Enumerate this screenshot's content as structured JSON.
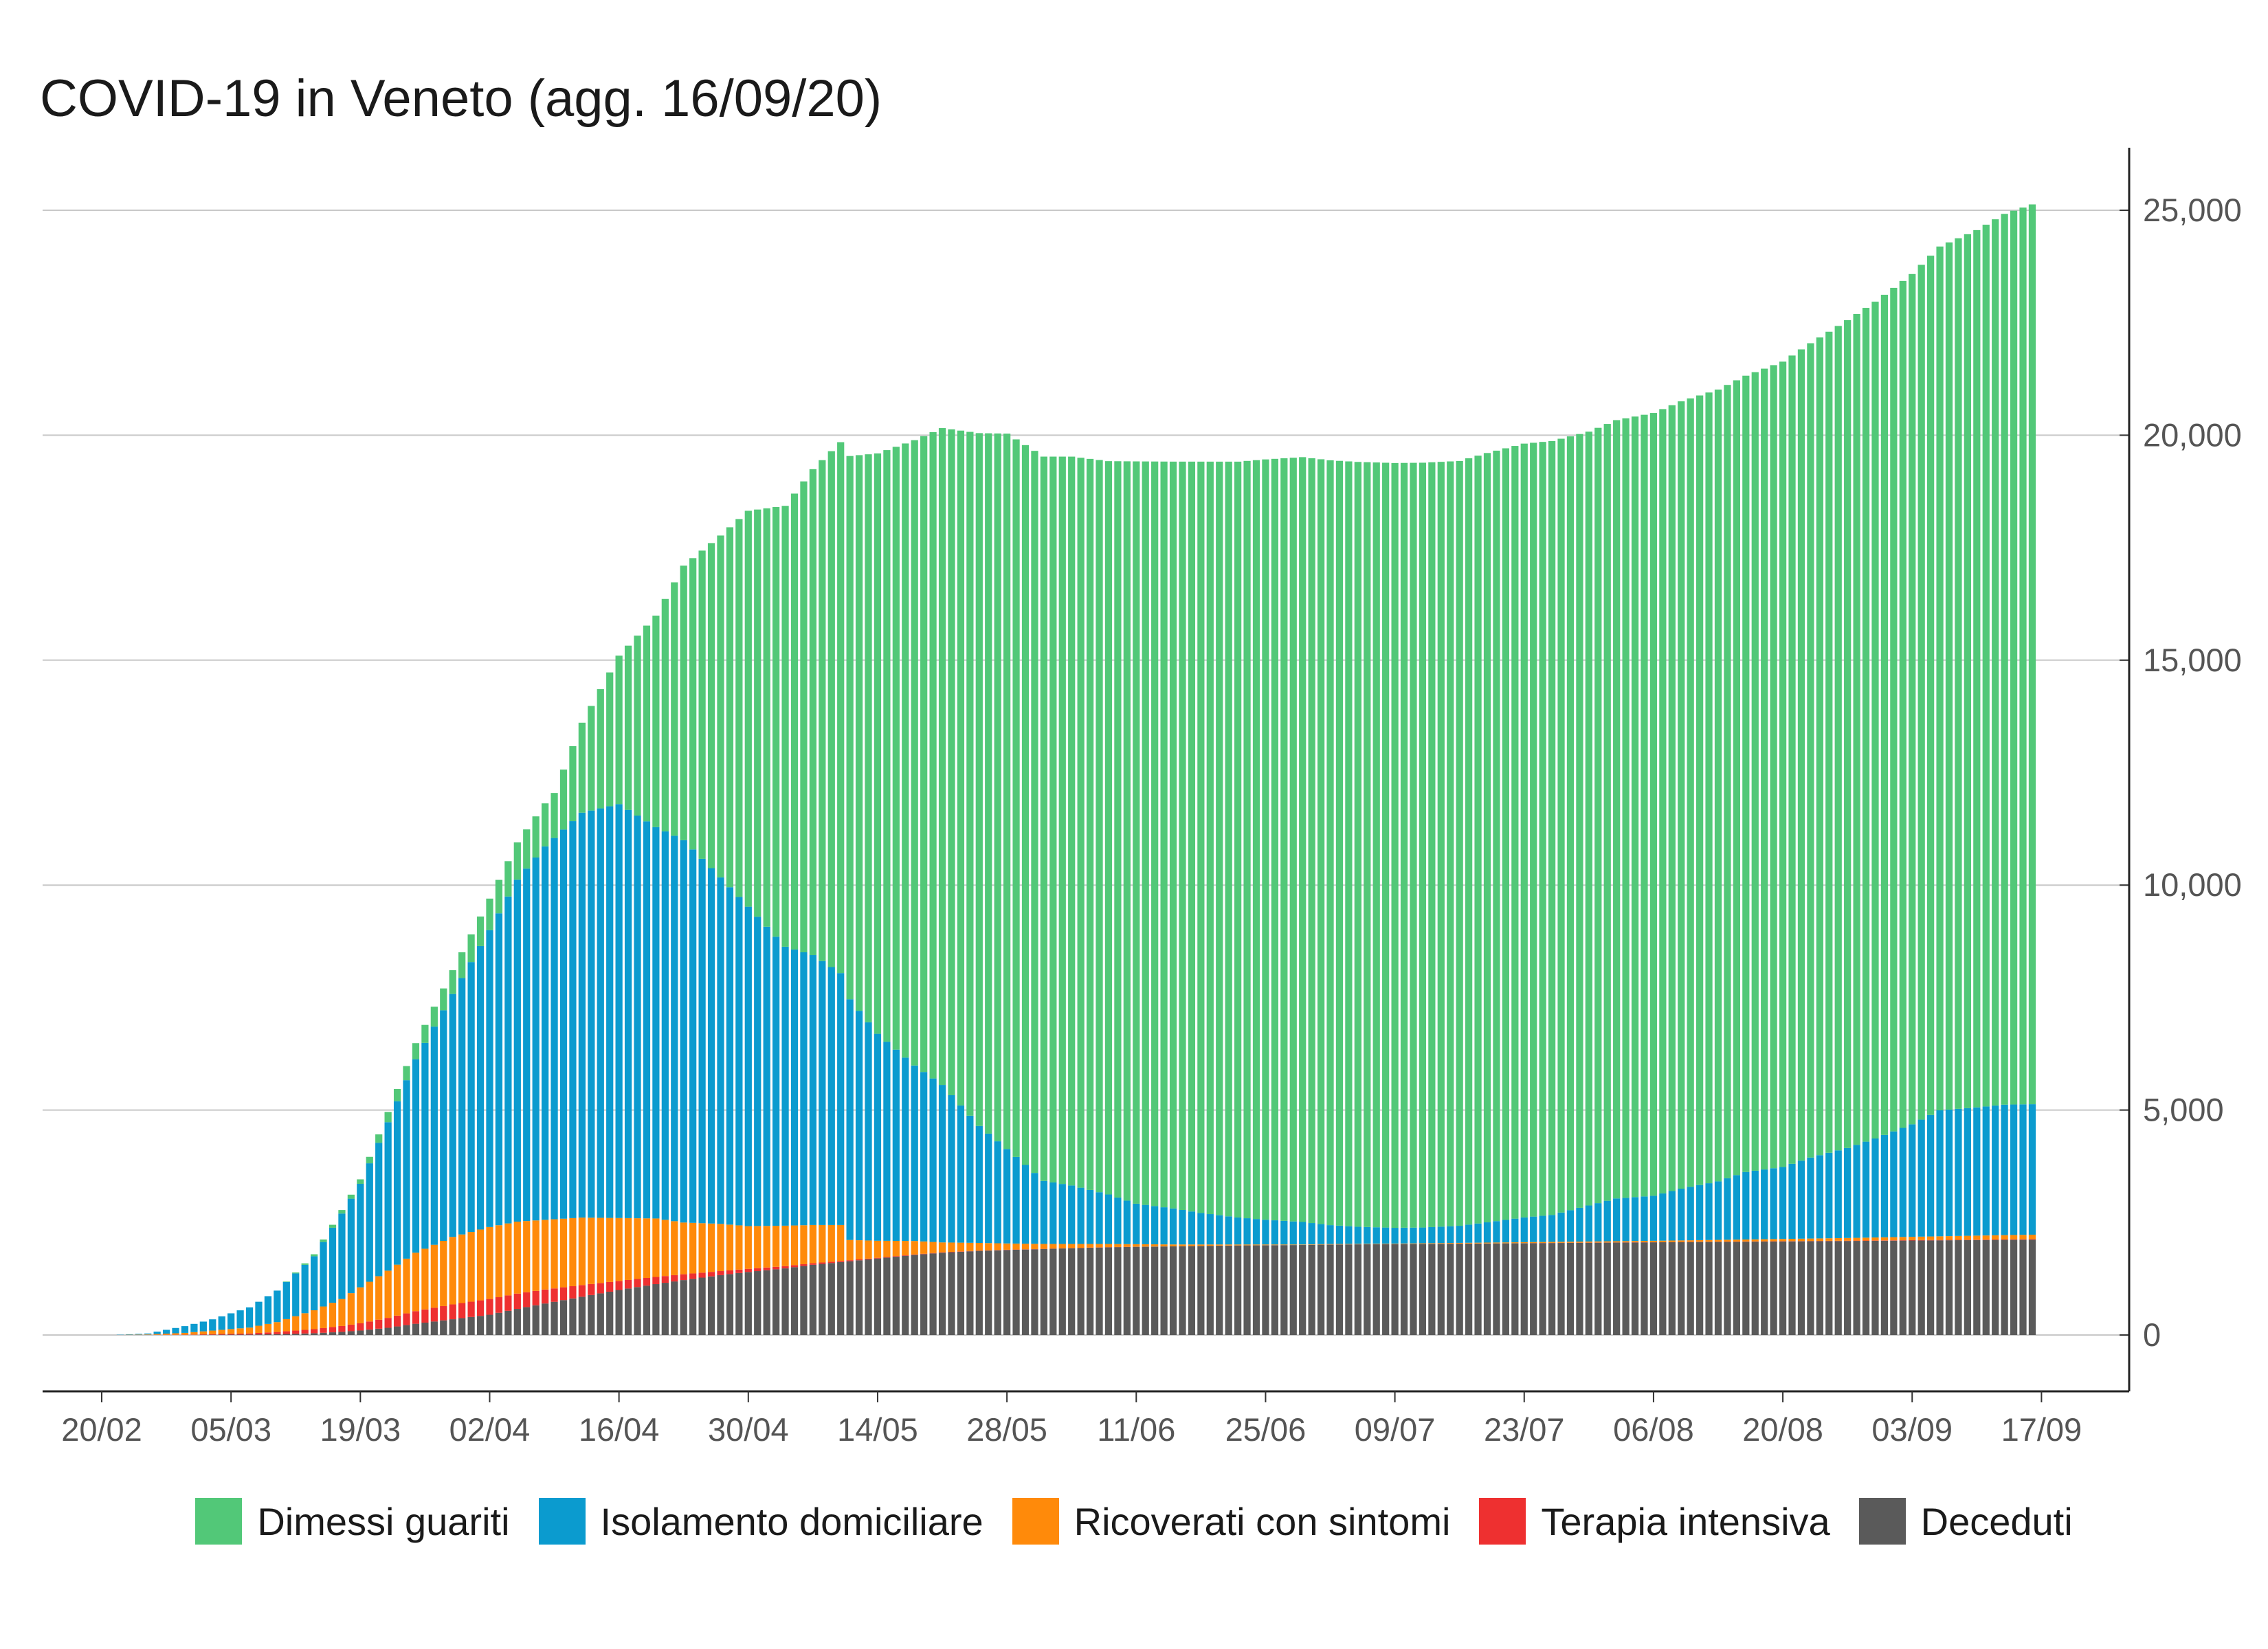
{
  "chart_data": {
    "type": "bar",
    "stacked": true,
    "title": "COVID-19 in Veneto (agg. 16/09/20)",
    "xlabel": "",
    "ylabel": "",
    "ylim": [
      0,
      26000
    ],
    "y_ticks": [
      0,
      5000,
      10000,
      15000,
      20000,
      25000
    ],
    "y_tick_labels": [
      "0",
      "5,000",
      "10,000",
      "15,000",
      "20,000",
      "25,000"
    ],
    "y_axis_side": "right",
    "grid": "horizontal",
    "legend_position": "bottom",
    "x_start": "21/02",
    "x_end": "16/09",
    "x_ticks": [
      "20/02",
      "05/03",
      "19/03",
      "02/04",
      "16/04",
      "30/04",
      "14/05",
      "28/05",
      "11/06",
      "25/06",
      "09/07",
      "23/07",
      "06/08",
      "20/08",
      "03/09",
      "17/09"
    ],
    "series_order_bottom_to_top": [
      "Deceduti",
      "Terapia intensiva",
      "Ricoverati con sintomi",
      "Isolamento domiciliare",
      "Dimessi guariti"
    ],
    "series": [
      {
        "name": "Dimessi guariti",
        "color": "#52c878",
        "keyframes": [
          [
            "21/02",
            0
          ],
          [
            "10/03",
            0
          ],
          [
            "19/03",
            100
          ],
          [
            "26/03",
            400
          ],
          [
            "02/04",
            700
          ],
          [
            "09/04",
            1000
          ],
          [
            "12/04",
            2000
          ],
          [
            "16/04",
            3300
          ],
          [
            "20/04",
            4700
          ],
          [
            "23/04",
            6100
          ],
          [
            "27/04",
            7600
          ],
          [
            "30/04",
            8800
          ],
          [
            "04/05",
            9800
          ],
          [
            "07/05",
            10800
          ],
          [
            "10/05",
            11800
          ],
          [
            "14/05",
            12900
          ],
          [
            "18/05",
            13900
          ],
          [
            "21/05",
            14600
          ],
          [
            "25/05",
            15400
          ],
          [
            "28/05",
            15900
          ],
          [
            "01/06",
            16100
          ],
          [
            "04/06",
            16200
          ],
          [
            "08/06",
            16300
          ],
          [
            "11/06",
            16500
          ],
          [
            "15/06",
            16600
          ],
          [
            "18/06",
            16700
          ],
          [
            "22/06",
            16800
          ],
          [
            "25/06",
            16900
          ],
          [
            "29/06",
            17000
          ],
          [
            "02/07",
            17000
          ],
          [
            "05/07",
            17000
          ],
          [
            "09/07",
            17000
          ],
          [
            "12/07",
            17000
          ],
          [
            "16/07",
            17000
          ],
          [
            "19/07",
            17100
          ],
          [
            "23/07",
            17200
          ],
          [
            "26/07",
            17200
          ],
          [
            "30/07",
            17200
          ],
          [
            "02/08",
            17300
          ],
          [
            "06/08",
            17400
          ],
          [
            "09/08",
            17500
          ],
          [
            "13/08",
            17600
          ],
          [
            "16/08",
            17700
          ],
          [
            "20/08",
            17900
          ],
          [
            "23/08",
            18100
          ],
          [
            "27/08",
            18400
          ],
          [
            "30/08",
            18600
          ],
          [
            "03/09",
            18900
          ],
          [
            "06/09",
            19200
          ],
          [
            "10/09",
            19500
          ],
          [
            "13/09",
            19800
          ],
          [
            "16/09",
            20000
          ]
        ]
      },
      {
        "name": "Isolamento domiciliare",
        "color": "#0b9bcf",
        "keyframes": [
          [
            "21/02",
            0
          ],
          [
            "25/02",
            20
          ],
          [
            "29/02",
            150
          ],
          [
            "03/03",
            250
          ],
          [
            "07/03",
            450
          ],
          [
            "10/03",
            700
          ],
          [
            "14/03",
            1200
          ],
          [
            "17/03",
            1900
          ],
          [
            "19/03",
            2300
          ],
          [
            "22/03",
            3300
          ],
          [
            "25/03",
            4300
          ],
          [
            "29/03",
            5400
          ],
          [
            "02/04",
            6600
          ],
          [
            "05/04",
            7600
          ],
          [
            "08/04",
            8300
          ],
          [
            "12/04",
            9000
          ],
          [
            "16/04",
            9200
          ],
          [
            "20/04",
            8700
          ],
          [
            "23/04",
            8500
          ],
          [
            "27/04",
            7700
          ],
          [
            "30/04",
            7100
          ],
          [
            "04/05",
            6200
          ],
          [
            "07/05",
            6000
          ],
          [
            "10/05",
            5600
          ],
          [
            "14/05",
            4600
          ],
          [
            "18/05",
            3900
          ],
          [
            "21/05",
            3500
          ],
          [
            "25/05",
            2600
          ],
          [
            "28/05",
            2100
          ],
          [
            "01/06",
            1400
          ],
          [
            "04/06",
            1300
          ],
          [
            "08/06",
            1100
          ],
          [
            "11/06",
            900
          ],
          [
            "15/06",
            800
          ],
          [
            "18/06",
            700
          ],
          [
            "22/06",
            600
          ],
          [
            "25/06",
            550
          ],
          [
            "29/06",
            500
          ],
          [
            "02/07",
            420
          ],
          [
            "05/07",
            380
          ],
          [
            "09/07",
            350
          ],
          [
            "12/07",
            350
          ],
          [
            "16/07",
            380
          ],
          [
            "19/07",
            450
          ],
          [
            "23/07",
            550
          ],
          [
            "26/07",
            600
          ],
          [
            "30/07",
            800
          ],
          [
            "02/08",
            950
          ],
          [
            "06/08",
            1000
          ],
          [
            "09/08",
            1150
          ],
          [
            "13/08",
            1300
          ],
          [
            "16/08",
            1500
          ],
          [
            "20/08",
            1600
          ],
          [
            "23/08",
            1800
          ],
          [
            "27/08",
            2000
          ],
          [
            "30/08",
            2200
          ],
          [
            "03/09",
            2500
          ],
          [
            "06/09",
            2800
          ],
          [
            "10/09",
            2850
          ],
          [
            "13/09",
            2900
          ],
          [
            "16/09",
            2900
          ]
        ]
      },
      {
        "name": "Ricoverati con sintomi",
        "color": "#ff8a0a",
        "keyframes": [
          [
            "21/02",
            0
          ],
          [
            "25/02",
            10
          ],
          [
            "29/02",
            40
          ],
          [
            "03/03",
            80
          ],
          [
            "07/03",
            130
          ],
          [
            "10/03",
            220
          ],
          [
            "14/03",
            420
          ],
          [
            "17/03",
            600
          ],
          [
            "19/03",
            800
          ],
          [
            "22/03",
            1050
          ],
          [
            "25/03",
            1300
          ],
          [
            "29/03",
            1500
          ],
          [
            "02/04",
            1600
          ],
          [
            "05/04",
            1600
          ],
          [
            "08/04",
            1550
          ],
          [
            "12/04",
            1500
          ],
          [
            "16/04",
            1400
          ],
          [
            "20/04",
            1300
          ],
          [
            "23/04",
            1150
          ],
          [
            "27/04",
            1050
          ],
          [
            "30/04",
            950
          ],
          [
            "04/05",
            900
          ],
          [
            "07/05",
            850
          ],
          [
            "10/05",
            800
          ],
          [
            "11/05",
            450
          ],
          [
            "14/05",
            380
          ],
          [
            "18/05",
            300
          ],
          [
            "21/05",
            220
          ],
          [
            "25/05",
            170
          ],
          [
            "28/05",
            140
          ],
          [
            "01/06",
            110
          ],
          [
            "04/06",
            90
          ],
          [
            "08/06",
            70
          ],
          [
            "11/06",
            55
          ],
          [
            "15/06",
            40
          ],
          [
            "18/06",
            30
          ],
          [
            "22/06",
            20
          ],
          [
            "25/06",
            15
          ],
          [
            "29/06",
            10
          ],
          [
            "02/07",
            10
          ],
          [
            "09/07",
            10
          ],
          [
            "16/07",
            15
          ],
          [
            "23/07",
            20
          ],
          [
            "30/07",
            25
          ],
          [
            "06/08",
            30
          ],
          [
            "13/08",
            40
          ],
          [
            "20/08",
            50
          ],
          [
            "27/08",
            60
          ],
          [
            "03/09",
            75
          ],
          [
            "10/09",
            90
          ],
          [
            "16/09",
            100
          ]
        ]
      },
      {
        "name": "Terapia intensiva",
        "color": "#ee3030",
        "keyframes": [
          [
            "21/02",
            0
          ],
          [
            "29/02",
            5
          ],
          [
            "07/03",
            25
          ],
          [
            "10/03",
            50
          ],
          [
            "14/03",
            90
          ],
          [
            "17/03",
            130
          ],
          [
            "19/03",
            160
          ],
          [
            "22/03",
            220
          ],
          [
            "25/03",
            280
          ],
          [
            "29/03",
            330
          ],
          [
            "02/04",
            350
          ],
          [
            "05/04",
            340
          ],
          [
            "08/04",
            310
          ],
          [
            "12/04",
            260
          ],
          [
            "16/04",
            200
          ],
          [
            "20/04",
            160
          ],
          [
            "23/04",
            130
          ],
          [
            "27/04",
            90
          ],
          [
            "30/04",
            70
          ],
          [
            "04/05",
            50
          ],
          [
            "07/05",
            35
          ],
          [
            "10/05",
            25
          ],
          [
            "14/05",
            15
          ],
          [
            "18/05",
            10
          ],
          [
            "21/05",
            8
          ],
          [
            "28/05",
            5
          ],
          [
            "04/06",
            4
          ],
          [
            "11/06",
            3
          ],
          [
            "25/06",
            2
          ],
          [
            "09/07",
            2
          ],
          [
            "23/07",
            3
          ],
          [
            "06/08",
            4
          ],
          [
            "20/08",
            5
          ],
          [
            "03/09",
            8
          ],
          [
            "16/09",
            10
          ]
        ]
      },
      {
        "name": "Deceduti",
        "color": "#5a5a5a",
        "keyframes": [
          [
            "21/02",
            0
          ],
          [
            "25/02",
            1
          ],
          [
            "29/02",
            2
          ],
          [
            "03/03",
            5
          ],
          [
            "07/03",
            10
          ],
          [
            "10/03",
            17
          ],
          [
            "14/03",
            40
          ],
          [
            "17/03",
            70
          ],
          [
            "19/03",
            100
          ],
          [
            "22/03",
            160
          ],
          [
            "25/03",
            250
          ],
          [
            "29/03",
            350
          ],
          [
            "02/04",
            450
          ],
          [
            "05/04",
            580
          ],
          [
            "08/04",
            700
          ],
          [
            "12/04",
            850
          ],
          [
            "16/04",
            1000
          ],
          [
            "20/04",
            1130
          ],
          [
            "23/04",
            1220
          ],
          [
            "27/04",
            1330
          ],
          [
            "30/04",
            1400
          ],
          [
            "04/05",
            1480
          ],
          [
            "07/05",
            1560
          ],
          [
            "10/05",
            1620
          ],
          [
            "14/05",
            1700
          ],
          [
            "18/05",
            1780
          ],
          [
            "21/05",
            1830
          ],
          [
            "25/05",
            1870
          ],
          [
            "28/05",
            1890
          ],
          [
            "01/06",
            1910
          ],
          [
            "04/06",
            1930
          ],
          [
            "08/06",
            1950
          ],
          [
            "11/06",
            1960
          ],
          [
            "15/06",
            1970
          ],
          [
            "18/06",
            1980
          ],
          [
            "22/06",
            1990
          ],
          [
            "25/06",
            1995
          ],
          [
            "29/06",
            2000
          ],
          [
            "02/07",
            2010
          ],
          [
            "09/07",
            2020
          ],
          [
            "16/07",
            2030
          ],
          [
            "23/07",
            2040
          ],
          [
            "30/07",
            2050
          ],
          [
            "06/08",
            2060
          ],
          [
            "13/08",
            2070
          ],
          [
            "20/08",
            2080
          ],
          [
            "27/08",
            2090
          ],
          [
            "03/09",
            2100
          ],
          [
            "10/09",
            2110
          ],
          [
            "16/09",
            2120
          ]
        ]
      }
    ]
  }
}
